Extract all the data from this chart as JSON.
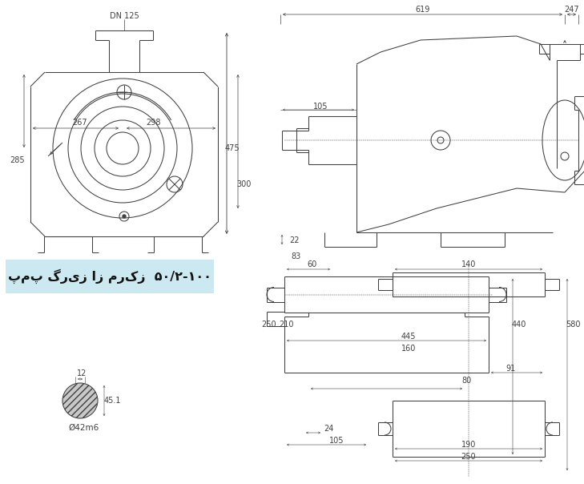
{
  "title": "پمپ گریز از مرکز  ۵۰/۲-۱۰۰",
  "title_bg": "#cce8f0",
  "bg_color": "#ffffff",
  "line_color": "#404040",
  "dim_color": "#404040",
  "font_size_dim": 7.0
}
